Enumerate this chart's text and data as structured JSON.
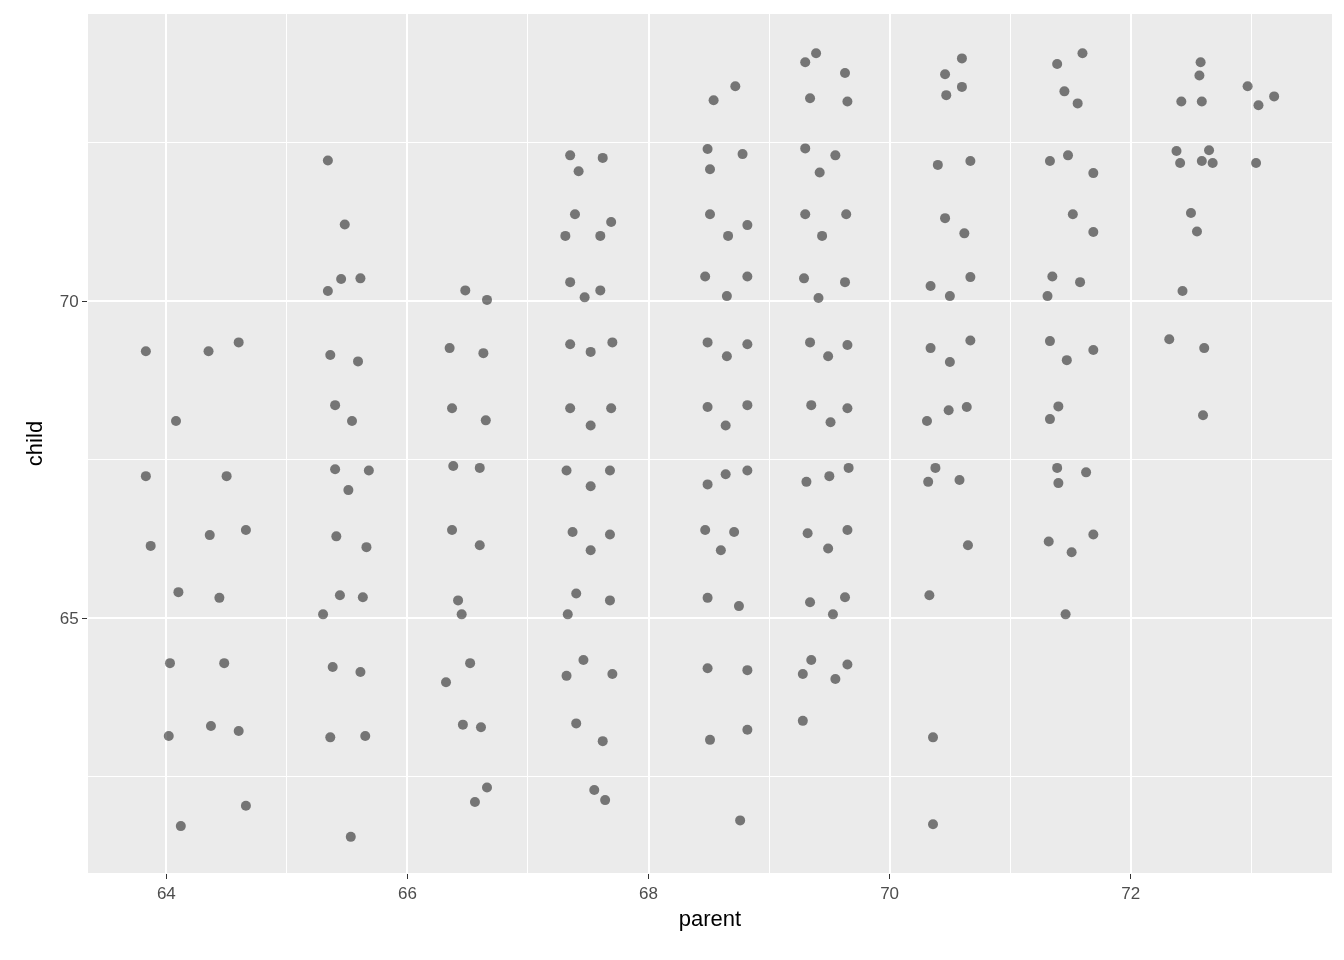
{
  "chart_data": {
    "type": "scatter",
    "xlabel": "parent",
    "ylabel": "child",
    "color": "#000000",
    "marker": "circle",
    "grid": true,
    "xlim": [
      63.35,
      73.67
    ],
    "ylim": [
      60.98,
      74.53
    ],
    "xticks": [
      64,
      66,
      68,
      70,
      72
    ],
    "yticks": [
      65,
      70
    ],
    "x": [
      63.83,
      63.83,
      63.87,
      64.1,
      64.02,
      64.12,
      64.66,
      64.6,
      64.44,
      64.5,
      64.66,
      64.36,
      64.03,
      64.48,
      64.37,
      64.6,
      64.08,
      64.35,
      65.34,
      65.48,
      65.45,
      65.61,
      65.34,
      65.36,
      65.59,
      65.4,
      65.54,
      65.4,
      65.68,
      65.41,
      65.66,
      65.51,
      65.3,
      65.63,
      65.38,
      65.61,
      65.36,
      65.65,
      65.53,
      65.44,
      66.48,
      66.66,
      66.35,
      66.63,
      66.37,
      66.65,
      66.38,
      66.6,
      66.37,
      66.6,
      66.42,
      66.32,
      66.52,
      66.46,
      66.61,
      66.66,
      66.56,
      66.45,
      67.35,
      67.62,
      67.42,
      67.39,
      67.69,
      67.31,
      67.6,
      67.35,
      67.6,
      67.47,
      67.35,
      67.7,
      67.52,
      67.35,
      67.69,
      67.52,
      67.32,
      67.68,
      67.52,
      67.37,
      67.68,
      67.52,
      67.4,
      67.68,
      67.33,
      67.46,
      67.7,
      67.32,
      67.4,
      67.62,
      67.55,
      67.64,
      68.54,
      68.72,
      68.49,
      68.78,
      68.51,
      68.51,
      68.82,
      68.66,
      68.47,
      68.82,
      68.65,
      68.49,
      68.82,
      68.65,
      68.49,
      68.82,
      68.64,
      68.49,
      68.82,
      68.64,
      68.47,
      68.71,
      68.6,
      68.49,
      68.75,
      68.49,
      68.82,
      68.51,
      68.82,
      68.76,
      69.3,
      69.39,
      69.63,
      69.34,
      69.65,
      69.3,
      69.55,
      69.42,
      69.3,
      69.64,
      69.44,
      69.29,
      69.63,
      69.41,
      69.34,
      69.65,
      69.49,
      69.35,
      69.65,
      69.51,
      69.31,
      69.66,
      69.5,
      69.32,
      69.65,
      69.49,
      69.34,
      69.53,
      69.63,
      69.35,
      69.65,
      69.28,
      69.55,
      69.28,
      70.46,
      70.6,
      70.47,
      70.6,
      70.4,
      70.67,
      70.46,
      70.62,
      70.34,
      70.67,
      70.5,
      70.34,
      70.67,
      70.5,
      70.31,
      70.64,
      70.49,
      70.38,
      70.58,
      70.32,
      70.65,
      70.33,
      70.36,
      70.36,
      71.39,
      71.6,
      71.45,
      71.56,
      71.33,
      71.48,
      71.69,
      71.52,
      71.69,
      71.35,
      71.58,
      71.31,
      71.33,
      71.69,
      71.47,
      71.33,
      71.4,
      71.39,
      71.63,
      71.4,
      71.32,
      71.69,
      71.51,
      71.46,
      72.58,
      72.57,
      72.42,
      72.59,
      72.38,
      72.65,
      72.41,
      72.59,
      72.68,
      72.5,
      72.55,
      72.43,
      72.32,
      72.61,
      72.6,
      72.97,
      73.06,
      73.19,
      73.04
    ],
    "values": [
      69.21,
      67.24,
      66.14,
      65.41,
      63.14,
      61.72,
      62.04,
      69.35,
      65.32,
      67.24,
      66.39,
      66.31,
      64.29,
      64.29,
      63.3,
      63.22,
      68.11,
      69.21,
      72.22,
      71.21,
      70.35,
      70.36,
      70.16,
      69.15,
      69.05,
      68.36,
      68.11,
      67.35,
      67.33,
      66.29,
      66.12,
      67.02,
      65.06,
      65.33,
      64.23,
      64.15,
      63.12,
      63.14,
      61.55,
      65.36,
      70.17,
      70.02,
      69.26,
      69.18,
      68.31,
      68.12,
      67.4,
      67.37,
      66.39,
      66.15,
      65.28,
      63.99,
      64.29,
      63.32,
      63.28,
      62.33,
      62.1,
      65.06,
      72.3,
      72.26,
      72.05,
      71.37,
      71.25,
      71.03,
      71.03,
      70.3,
      70.17,
      70.06,
      69.32,
      69.35,
      69.2,
      68.31,
      68.31,
      68.04,
      67.33,
      67.33,
      67.08,
      66.36,
      66.32,
      66.07,
      65.39,
      65.28,
      65.06,
      64.34,
      64.12,
      64.09,
      63.34,
      63.06,
      62.29,
      62.13,
      73.17,
      73.39,
      72.4,
      72.32,
      72.08,
      71.37,
      71.2,
      71.03,
      70.39,
      70.39,
      70.08,
      69.35,
      69.32,
      69.13,
      68.33,
      68.36,
      68.04,
      67.11,
      67.33,
      67.27,
      66.39,
      66.36,
      66.07,
      65.32,
      65.19,
      64.21,
      64.18,
      63.08,
      63.24,
      61.81,
      73.77,
      73.91,
      73.6,
      73.2,
      73.15,
      72.41,
      72.3,
      72.03,
      71.37,
      71.37,
      71.03,
      70.36,
      70.3,
      70.05,
      69.35,
      69.31,
      69.13,
      68.36,
      68.31,
      68.09,
      67.15,
      67.37,
      67.24,
      66.34,
      66.39,
      66.1,
      65.25,
      65.06,
      65.33,
      64.34,
      64.27,
      64.12,
      64.04,
      63.38,
      73.58,
      73.83,
      73.25,
      73.38,
      72.15,
      72.21,
      71.31,
      71.07,
      70.24,
      70.38,
      70.08,
      69.26,
      69.38,
      69.04,
      68.11,
      68.33,
      68.28,
      67.37,
      67.18,
      67.15,
      66.15,
      65.36,
      63.12,
      61.75,
      73.74,
      73.91,
      73.31,
      73.12,
      72.21,
      72.3,
      72.02,
      71.37,
      71.09,
      70.39,
      70.3,
      70.08,
      69.37,
      69.23,
      69.07,
      68.14,
      68.34,
      67.37,
      67.3,
      67.13,
      66.21,
      66.32,
      66.04,
      65.06,
      73.77,
      73.56,
      73.15,
      73.15,
      72.37,
      72.38,
      72.18,
      72.21,
      72.18,
      71.39,
      71.1,
      70.16,
      69.4,
      69.26,
      68.2,
      73.39,
      73.09,
      73.23,
      72.18
    ]
  }
}
